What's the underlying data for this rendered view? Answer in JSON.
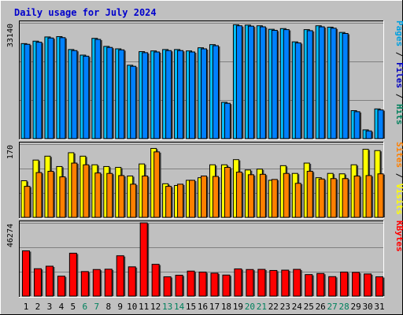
{
  "chart_data": {
    "type": "bar",
    "title": "Daily usage for July 2024",
    "colors": {
      "background": "#c0c0c0",
      "panel": "#c0c0c0",
      "hits": "#00c0ff",
      "files": "#0080ff",
      "pages": "#00a0e0",
      "visits": "#ffff00",
      "sites": "#ff8000",
      "kbytes": "#ff0000",
      "title": "#0000cc",
      "weekend_label": "#00805c",
      "weekday_label": "#000000"
    },
    "categories": [
      "1",
      "2",
      "3",
      "4",
      "5",
      "6",
      "7",
      "8",
      "9",
      "10",
      "11",
      "12",
      "13",
      "14",
      "15",
      "16",
      "17",
      "18",
      "19",
      "20",
      "21",
      "22",
      "23",
      "24",
      "25",
      "26",
      "27",
      "28",
      "29",
      "30",
      "31"
    ],
    "weekend_days": [
      "6",
      "7",
      "13",
      "14",
      "20",
      "21",
      "27",
      "28"
    ],
    "panels": [
      {
        "name": "hits-files-pages",
        "ytick": "33140",
        "ymax": 33140,
        "legend": [
          {
            "text": "Pages",
            "color": "#00a0e0"
          },
          {
            "text": " / ",
            "color": "#000000"
          },
          {
            "text": "Files",
            "color": "#0000c0"
          },
          {
            "text": " / ",
            "color": "#000000"
          },
          {
            "text": "Hits",
            "color": "#00805c"
          }
        ],
        "series": [
          {
            "values": [
              27200,
              27900,
              29100,
              29200,
              25500,
              23900,
              28700,
              26400,
              25700,
              21000,
              24900,
              25100,
              25500,
              25500,
              25100,
              26000,
              26900,
              10400,
              32600,
              32500,
              32300,
              31300,
              31500,
              27700,
              31200,
              32300,
              31900,
              30400,
              8000,
              2500,
              8500
            ]
          },
          {
            "values": [
              27000,
              27600,
              28800,
              28900,
              25200,
              23600,
              28400,
              26100,
              25400,
              20700,
              24600,
              24800,
              25200,
              25200,
              24800,
              25700,
              26600,
              10100,
              32300,
              32200,
              32000,
              31000,
              31200,
              27400,
              30900,
              32000,
              31600,
              30100,
              7700,
              2200,
              8200
            ]
          }
        ]
      },
      {
        "name": "visits-sites",
        "ytick": "170",
        "ymax": 170,
        "legend": [
          {
            "text": "Sites",
            "color": "#ff8000"
          },
          {
            "text": " / ",
            "color": "#000000"
          },
          {
            "text": "Visits",
            "color": "#ffff00"
          }
        ],
        "series": [
          {
            "values": [
              85,
              133,
              142,
              118,
              150,
              142,
              122,
              118,
              116,
              96,
              124,
              160,
              78,
              74,
              86,
              92,
              122,
              122,
              134,
              110,
              112,
              86,
              120,
              102,
              126,
              92,
              102,
              101,
              122,
              158,
              155
            ]
          },
          {
            "values": [
              72,
              104,
              107,
              94,
              126,
              122,
              103,
              102,
              97,
              77,
              96,
              152,
              72,
              77,
              86,
              96,
              95,
              116,
              105,
              99,
              100,
              88,
              102,
              79,
              107,
              89,
              90,
              90,
              96,
              97,
              101
            ]
          }
        ]
      },
      {
        "name": "kbytes",
        "ytick": "46274",
        "ymax": 46274,
        "legend": [
          {
            "text": "KBytes",
            "color": "#ff0000"
          }
        ],
        "series": [
          {
            "values": [
              28600,
              17300,
              18900,
              12600,
              27100,
              15500,
              16800,
              17000,
              25500,
              18500,
              46274,
              20100,
              12200,
              13200,
              15800,
              15200,
              14500,
              13300,
              17200,
              16800,
              16900,
              16200,
              16400,
              16900,
              13600,
              14300,
              12300,
              15200,
              15000,
              14000,
              12200
            ]
          }
        ]
      }
    ]
  }
}
